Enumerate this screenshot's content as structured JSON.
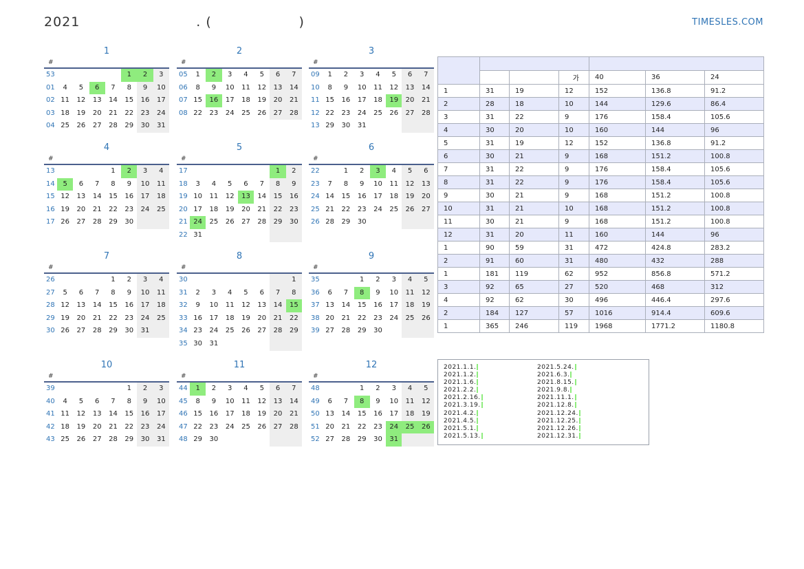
{
  "header": {
    "title": "2021                        . (                  )",
    "site": "TIMESLES.COM"
  },
  "months": [
    {
      "name": "1",
      "rows": [
        {
          "wk": "53",
          "days": [
            "",
            "",
            "",
            "",
            "1",
            "2",
            "3"
          ]
        },
        {
          "wk": "01",
          "days": [
            "4",
            "5",
            "6",
            "7",
            "8",
            "9",
            "10"
          ]
        },
        {
          "wk": "02",
          "days": [
            "11",
            "12",
            "13",
            "14",
            "15",
            "16",
            "17"
          ]
        },
        {
          "wk": "03",
          "days": [
            "18",
            "19",
            "20",
            "21",
            "22",
            "23",
            "24"
          ]
        },
        {
          "wk": "04",
          "days": [
            "25",
            "26",
            "27",
            "28",
            "29",
            "30",
            "31"
          ]
        }
      ],
      "hol": [
        "1",
        "2",
        "6"
      ]
    },
    {
      "name": "2",
      "rows": [
        {
          "wk": "05",
          "days": [
            "1",
            "2",
            "3",
            "4",
            "5",
            "6",
            "7"
          ]
        },
        {
          "wk": "06",
          "days": [
            "8",
            "9",
            "10",
            "11",
            "12",
            "13",
            "14"
          ]
        },
        {
          "wk": "07",
          "days": [
            "15",
            "16",
            "17",
            "18",
            "19",
            "20",
            "21"
          ]
        },
        {
          "wk": "08",
          "days": [
            "22",
            "23",
            "24",
            "25",
            "26",
            "27",
            "28"
          ]
        }
      ],
      "hol": [
        "2",
        "16"
      ]
    },
    {
      "name": "3",
      "rows": [
        {
          "wk": "09",
          "days": [
            "1",
            "2",
            "3",
            "4",
            "5",
            "6",
            "7"
          ]
        },
        {
          "wk": "10",
          "days": [
            "8",
            "9",
            "10",
            "11",
            "12",
            "13",
            "14"
          ]
        },
        {
          "wk": "11",
          "days": [
            "15",
            "16",
            "17",
            "18",
            "19",
            "20",
            "21"
          ]
        },
        {
          "wk": "12",
          "days": [
            "22",
            "23",
            "24",
            "25",
            "26",
            "27",
            "28"
          ]
        },
        {
          "wk": "13",
          "days": [
            "29",
            "30",
            "31",
            "",
            "",
            "",
            ""
          ]
        }
      ],
      "hol": [
        "19"
      ]
    },
    {
      "name": "4",
      "rows": [
        {
          "wk": "13",
          "days": [
            "",
            "",
            "",
            "1",
            "2",
            "3",
            "4"
          ]
        },
        {
          "wk": "14",
          "days": [
            "5",
            "6",
            "7",
            "8",
            "9",
            "10",
            "11"
          ]
        },
        {
          "wk": "15",
          "days": [
            "12",
            "13",
            "14",
            "15",
            "16",
            "17",
            "18"
          ]
        },
        {
          "wk": "16",
          "days": [
            "19",
            "20",
            "21",
            "22",
            "23",
            "24",
            "25"
          ]
        },
        {
          "wk": "17",
          "days": [
            "26",
            "27",
            "28",
            "29",
            "30",
            "",
            ""
          ]
        }
      ],
      "hol": [
        "2",
        "5"
      ]
    },
    {
      "name": "5",
      "rows": [
        {
          "wk": "17",
          "days": [
            "",
            "",
            "",
            "",
            "",
            "1",
            "2"
          ]
        },
        {
          "wk": "18",
          "days": [
            "3",
            "4",
            "5",
            "6",
            "7",
            "8",
            "9"
          ]
        },
        {
          "wk": "19",
          "days": [
            "10",
            "11",
            "12",
            "13",
            "14",
            "15",
            "16"
          ]
        },
        {
          "wk": "20",
          "days": [
            "17",
            "18",
            "19",
            "20",
            "21",
            "22",
            "23"
          ]
        },
        {
          "wk": "21",
          "days": [
            "24",
            "25",
            "26",
            "27",
            "28",
            "29",
            "30"
          ]
        },
        {
          "wk": "22",
          "days": [
            "31",
            "",
            "",
            "",
            "",
            "",
            ""
          ]
        }
      ],
      "hol": [
        "1",
        "13",
        "24"
      ]
    },
    {
      "name": "6",
      "rows": [
        {
          "wk": "22",
          "days": [
            "",
            "1",
            "2",
            "3",
            "4",
            "5",
            "6"
          ]
        },
        {
          "wk": "23",
          "days": [
            "7",
            "8",
            "9",
            "10",
            "11",
            "12",
            "13"
          ]
        },
        {
          "wk": "24",
          "days": [
            "14",
            "15",
            "16",
            "17",
            "18",
            "19",
            "20"
          ]
        },
        {
          "wk": "25",
          "days": [
            "21",
            "22",
            "23",
            "24",
            "25",
            "26",
            "27"
          ]
        },
        {
          "wk": "26",
          "days": [
            "28",
            "29",
            "30",
            "",
            "",
            "",
            ""
          ]
        }
      ],
      "hol": [
        "3"
      ]
    },
    {
      "name": "7",
      "rows": [
        {
          "wk": "26",
          "days": [
            "",
            "",
            "",
            "1",
            "2",
            "3",
            "4"
          ]
        },
        {
          "wk": "27",
          "days": [
            "5",
            "6",
            "7",
            "8",
            "9",
            "10",
            "11"
          ]
        },
        {
          "wk": "28",
          "days": [
            "12",
            "13",
            "14",
            "15",
            "16",
            "17",
            "18"
          ]
        },
        {
          "wk": "29",
          "days": [
            "19",
            "20",
            "21",
            "22",
            "23",
            "24",
            "25"
          ]
        },
        {
          "wk": "30",
          "days": [
            "26",
            "27",
            "28",
            "29",
            "30",
            "31",
            ""
          ]
        }
      ],
      "hol": []
    },
    {
      "name": "8",
      "rows": [
        {
          "wk": "30",
          "days": [
            "",
            "",
            "",
            "",
            "",
            "",
            "1"
          ]
        },
        {
          "wk": "31",
          "days": [
            "2",
            "3",
            "4",
            "5",
            "6",
            "7",
            "8"
          ]
        },
        {
          "wk": "32",
          "days": [
            "9",
            "10",
            "11",
            "12",
            "13",
            "14",
            "15"
          ]
        },
        {
          "wk": "33",
          "days": [
            "16",
            "17",
            "18",
            "19",
            "20",
            "21",
            "22"
          ]
        },
        {
          "wk": "34",
          "days": [
            "23",
            "24",
            "25",
            "26",
            "27",
            "28",
            "29"
          ]
        },
        {
          "wk": "35",
          "days": [
            "30",
            "31",
            "",
            "",
            "",
            "",
            ""
          ]
        }
      ],
      "hol": [
        "15"
      ]
    },
    {
      "name": "9",
      "rows": [
        {
          "wk": "35",
          "days": [
            "",
            "",
            "1",
            "2",
            "3",
            "4",
            "5"
          ]
        },
        {
          "wk": "36",
          "days": [
            "6",
            "7",
            "8",
            "9",
            "10",
            "11",
            "12"
          ]
        },
        {
          "wk": "37",
          "days": [
            "13",
            "14",
            "15",
            "16",
            "17",
            "18",
            "19"
          ]
        },
        {
          "wk": "38",
          "days": [
            "20",
            "21",
            "22",
            "23",
            "24",
            "25",
            "26"
          ]
        },
        {
          "wk": "39",
          "days": [
            "27",
            "28",
            "29",
            "30",
            "",
            "",
            ""
          ]
        }
      ],
      "hol": [
        "8"
      ]
    },
    {
      "name": "10",
      "rows": [
        {
          "wk": "39",
          "days": [
            "",
            "",
            "",
            "",
            "1",
            "2",
            "3"
          ]
        },
        {
          "wk": "40",
          "days": [
            "4",
            "5",
            "6",
            "7",
            "8",
            "9",
            "10"
          ]
        },
        {
          "wk": "41",
          "days": [
            "11",
            "12",
            "13",
            "14",
            "15",
            "16",
            "17"
          ]
        },
        {
          "wk": "42",
          "days": [
            "18",
            "19",
            "20",
            "21",
            "22",
            "23",
            "24"
          ]
        },
        {
          "wk": "43",
          "days": [
            "25",
            "26",
            "27",
            "28",
            "29",
            "30",
            "31"
          ]
        }
      ],
      "hol": []
    },
    {
      "name": "11",
      "rows": [
        {
          "wk": "44",
          "days": [
            "1",
            "2",
            "3",
            "4",
            "5",
            "6",
            "7"
          ]
        },
        {
          "wk": "45",
          "days": [
            "8",
            "9",
            "10",
            "11",
            "12",
            "13",
            "14"
          ]
        },
        {
          "wk": "46",
          "days": [
            "15",
            "16",
            "17",
            "18",
            "19",
            "20",
            "21"
          ]
        },
        {
          "wk": "47",
          "days": [
            "22",
            "23",
            "24",
            "25",
            "26",
            "27",
            "28"
          ]
        },
        {
          "wk": "48",
          "days": [
            "29",
            "30",
            "",
            "",
            "",
            "",
            ""
          ]
        }
      ],
      "hol": [
        "1"
      ]
    },
    {
      "name": "12",
      "rows": [
        {
          "wk": "48",
          "days": [
            "",
            "",
            "1",
            "2",
            "3",
            "4",
            "5"
          ]
        },
        {
          "wk": "49",
          "days": [
            "6",
            "7",
            "8",
            "9",
            "10",
            "11",
            "12"
          ]
        },
        {
          "wk": "50",
          "days": [
            "13",
            "14",
            "15",
            "16",
            "17",
            "18",
            "19"
          ]
        },
        {
          "wk": "51",
          "days": [
            "20",
            "21",
            "22",
            "23",
            "24",
            "25",
            "26"
          ]
        },
        {
          "wk": "52",
          "days": [
            "27",
            "28",
            "29",
            "30",
            "31",
            "",
            ""
          ]
        }
      ],
      "hol": [
        "8",
        "24",
        "25",
        "26",
        "31"
      ]
    }
  ],
  "week_header": "#",
  "stats": {
    "subheader": [
      "",
      "",
      "가",
      "40",
      "36",
      "24"
    ],
    "rows": [
      [
        "1",
        "31",
        "19",
        "12",
        "152",
        "136.8",
        "91.2"
      ],
      [
        "2",
        "28",
        "18",
        "10",
        "144",
        "129.6",
        "86.4"
      ],
      [
        "3",
        "31",
        "22",
        "9",
        "176",
        "158.4",
        "105.6"
      ],
      [
        "4",
        "30",
        "20",
        "10",
        "160",
        "144",
        "96"
      ],
      [
        "5",
        "31",
        "19",
        "12",
        "152",
        "136.8",
        "91.2"
      ],
      [
        "6",
        "30",
        "21",
        "9",
        "168",
        "151.2",
        "100.8"
      ],
      [
        "7",
        "31",
        "22",
        "9",
        "176",
        "158.4",
        "105.6"
      ],
      [
        "8",
        "31",
        "22",
        "9",
        "176",
        "158.4",
        "105.6"
      ],
      [
        "9",
        "30",
        "21",
        "9",
        "168",
        "151.2",
        "100.8"
      ],
      [
        "10",
        "31",
        "21",
        "10",
        "168",
        "151.2",
        "100.8"
      ],
      [
        "11",
        "30",
        "21",
        "9",
        "168",
        "151.2",
        "100.8"
      ],
      [
        "12",
        "31",
        "20",
        "11",
        "160",
        "144",
        "96"
      ],
      [
        "1",
        "90",
        "59",
        "31",
        "472",
        "424.8",
        "283.2"
      ],
      [
        "2",
        "91",
        "60",
        "31",
        "480",
        "432",
        "288"
      ],
      [
        "1",
        "181",
        "119",
        "62",
        "952",
        "856.8",
        "571.2"
      ],
      [
        "3",
        "92",
        "65",
        "27",
        "520",
        "468",
        "312"
      ],
      [
        "4",
        "92",
        "62",
        "30",
        "496",
        "446.4",
        "297.6"
      ],
      [
        "2",
        "184",
        "127",
        "57",
        "1016",
        "914.4",
        "609.6"
      ],
      [
        "1",
        "365",
        "246",
        "119",
        "1968",
        "1771.2",
        "1180.8"
      ]
    ]
  },
  "holidays": {
    "col1": [
      "2021.1.1.",
      "2021.1.2.",
      "2021.1.6.",
      "2021.2.2.",
      "2021.2.16.",
      "2021.3.19.",
      "2021.4.2.",
      "2021.4.5.",
      "2021.5.1.",
      "2021.5.13."
    ],
    "col2": [
      "2021.5.24.",
      "2021.6.3.",
      "2021.8.15.",
      "2021.9.8.",
      "2021.11.1.",
      "2021.12.8.",
      "2021.12.24.",
      "2021.12.25.",
      "2021.12.26.",
      "2021.12.31."
    ]
  },
  "colors": {
    "accent": "#2f74b5",
    "holiday": "#8fec7e",
    "weekend": "#eeeeee",
    "alt_row": "#e6e9fb"
  }
}
